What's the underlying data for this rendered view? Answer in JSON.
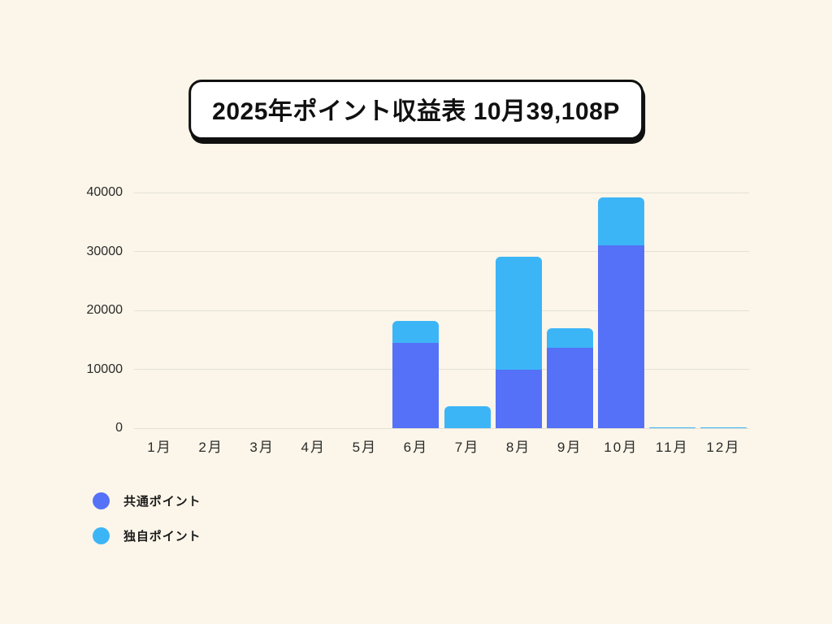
{
  "page": {
    "background": "#FBF6E9",
    "grid_color": "#E4E0D6",
    "text_color": "#2B2B2B"
  },
  "title": {
    "text": "2025年ポイント収益表 10月39,108P"
  },
  "chart_data": {
    "type": "bar",
    "stacked": true,
    "title": "2025年ポイント収益表 10月39,108P",
    "categories": [
      "1月",
      "2月",
      "3月",
      "4月",
      "5月",
      "6月",
      "7月",
      "8月",
      "9月",
      "10月",
      "11月",
      "12月"
    ],
    "series": [
      {
        "name": "共通ポイント",
        "color": "#5571F7",
        "values": [
          0,
          0,
          0,
          0,
          0,
          14500,
          0,
          9900,
          13700,
          31000,
          0,
          0
        ]
      },
      {
        "name": "独自ポイント",
        "color": "#3CB5F7",
        "values": [
          0,
          0,
          0,
          0,
          0,
          3700,
          3700,
          19200,
          3200,
          8108,
          100,
          200
        ]
      }
    ],
    "totals": [
      0,
      0,
      0,
      0,
      0,
      18200,
      3700,
      29100,
      16900,
      39108,
      100,
      200
    ],
    "xlabel": "",
    "ylabel": "",
    "ylim": [
      0,
      40000
    ],
    "yticks": [
      0,
      10000,
      20000,
      30000,
      40000
    ],
    "grid": true,
    "legend_position": "bottom-left"
  }
}
